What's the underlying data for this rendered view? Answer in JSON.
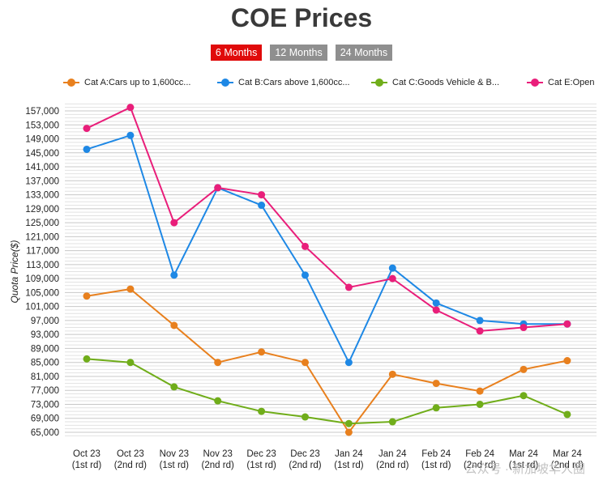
{
  "page": {
    "title": "COE Prices"
  },
  "range_buttons": [
    {
      "label": "6 Months",
      "active": true
    },
    {
      "label": "12 Months",
      "active": false
    },
    {
      "label": "24 Months",
      "active": false
    }
  ],
  "watermark": "公众号 · 新加坡华人圈",
  "colors": {
    "cat_a": "#e8801e",
    "cat_b": "#1e88e5",
    "cat_c": "#70ad1a",
    "cat_e": "#e91e7a",
    "active_button": "#e00b0b",
    "inactive_button": "#8f8f8f"
  },
  "chart_data": {
    "type": "line",
    "title": "COE Prices",
    "ylabel": "Quota Price($)",
    "xlabel": "",
    "ylim": [
      63000,
      161000
    ],
    "yticks": [
      65000,
      69000,
      73000,
      77000,
      81000,
      85000,
      89000,
      93000,
      97000,
      101000,
      105000,
      109000,
      113000,
      117000,
      121000,
      125000,
      129000,
      133000,
      137000,
      141000,
      145000,
      149000,
      153000,
      157000
    ],
    "grid": true,
    "legend_position": "top",
    "categories": [
      [
        "Oct 23",
        "(1st rd)"
      ],
      [
        "Oct 23",
        "(2nd rd)"
      ],
      [
        "Nov 23",
        "(1st rd)"
      ],
      [
        "Nov 23",
        "(2nd rd)"
      ],
      [
        "Dec 23",
        "(1st rd)"
      ],
      [
        "Dec 23",
        "(2nd rd)"
      ],
      [
        "Jan 24",
        "(1st rd)"
      ],
      [
        "Jan 24",
        "(2nd rd)"
      ],
      [
        "Feb 24",
        "(1st rd)"
      ],
      [
        "Feb 24",
        "(2nd rd)"
      ],
      [
        "Mar 24",
        "(1st rd)"
      ],
      [
        "Mar 24",
        "(2nd rd)"
      ]
    ],
    "series": [
      {
        "name": "Cat A:Cars up to 1,600cc...",
        "color": "#e8801e",
        "values": [
          104000,
          106000,
          95600,
          85000,
          88000,
          85000,
          65000,
          81600,
          79000,
          76800,
          83000,
          85500
        ]
      },
      {
        "name": "Cat B:Cars above 1,600cc...",
        "color": "#1e88e5",
        "values": [
          146000,
          150000,
          110000,
          135000,
          130000,
          110000,
          85000,
          112000,
          102000,
          97000,
          96000,
          96000
        ]
      },
      {
        "name": "Cat C:Goods Vehicle & B...",
        "color": "#70ad1a",
        "values": [
          86000,
          85000,
          78000,
          74000,
          71000,
          69400,
          67500,
          68000,
          72000,
          73000,
          75500,
          70100
        ]
      },
      {
        "name": "Cat E:Open",
        "color": "#e91e7a",
        "values": [
          152000,
          158000,
          125000,
          135000,
          133000,
          118200,
          106500,
          109000,
          100000,
          94000,
          95000,
          96000
        ]
      }
    ]
  }
}
